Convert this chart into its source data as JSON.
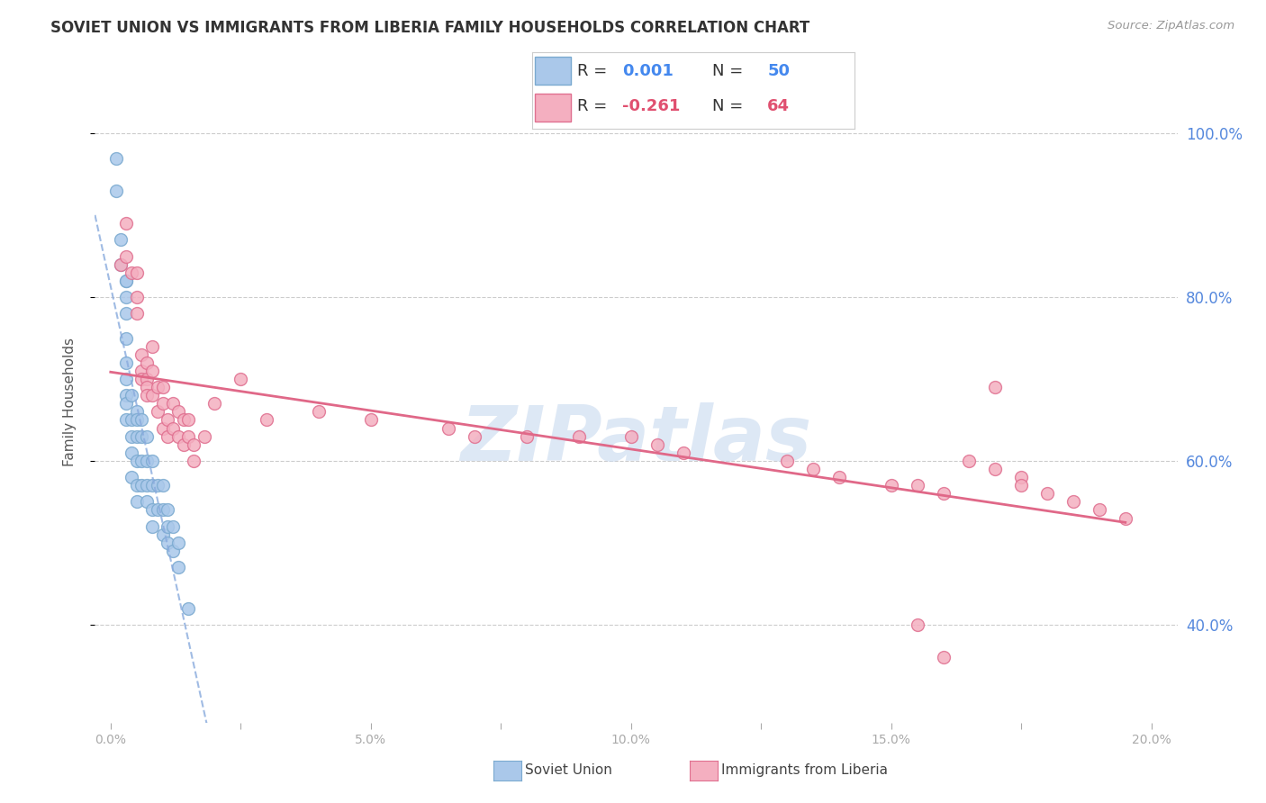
{
  "title": "SOVIET UNION VS IMMIGRANTS FROM LIBERIA FAMILY HOUSEHOLDS CORRELATION CHART",
  "source": "Source: ZipAtlas.com",
  "ylabel": "Family Households",
  "ytick_labels": [
    "40.0%",
    "60.0%",
    "80.0%",
    "100.0%"
  ],
  "ytick_vals": [
    0.4,
    0.6,
    0.8,
    1.0
  ],
  "xtick_vals": [
    0.0,
    0.025,
    0.05,
    0.075,
    0.1,
    0.125,
    0.15,
    0.175,
    0.2
  ],
  "xtick_labels": [
    "0.0%",
    "",
    "5.0%",
    "",
    "10.0%",
    "",
    "15.0%",
    "",
    "20.0%"
  ],
  "xlim": [
    -0.003,
    0.205
  ],
  "ylim": [
    0.28,
    1.065
  ],
  "soviet_color": "#aac8ea",
  "liberia_color": "#f4afc0",
  "soviet_edge_color": "#7baad0",
  "liberia_edge_color": "#e07090",
  "soviet_line_color": "#88aadd",
  "liberia_line_color": "#e06888",
  "grid_color": "#cccccc",
  "right_axis_color": "#5588dd",
  "watermark": "ZIPatlas",
  "soviet_x": [
    0.001,
    0.001,
    0.002,
    0.002,
    0.003,
    0.003,
    0.003,
    0.003,
    0.003,
    0.003,
    0.003,
    0.003,
    0.003,
    0.003,
    0.004,
    0.004,
    0.004,
    0.004,
    0.004,
    0.005,
    0.005,
    0.005,
    0.005,
    0.005,
    0.005,
    0.006,
    0.006,
    0.006,
    0.006,
    0.007,
    0.007,
    0.007,
    0.007,
    0.008,
    0.008,
    0.008,
    0.008,
    0.009,
    0.009,
    0.01,
    0.01,
    0.01,
    0.011,
    0.011,
    0.011,
    0.012,
    0.012,
    0.013,
    0.013,
    0.015
  ],
  "soviet_y": [
    0.97,
    0.93,
    0.87,
    0.84,
    0.82,
    0.82,
    0.8,
    0.78,
    0.75,
    0.72,
    0.7,
    0.68,
    0.67,
    0.65,
    0.68,
    0.65,
    0.63,
    0.61,
    0.58,
    0.66,
    0.65,
    0.63,
    0.6,
    0.57,
    0.55,
    0.65,
    0.63,
    0.6,
    0.57,
    0.63,
    0.6,
    0.57,
    0.55,
    0.6,
    0.57,
    0.54,
    0.52,
    0.57,
    0.54,
    0.57,
    0.54,
    0.51,
    0.54,
    0.52,
    0.5,
    0.52,
    0.49,
    0.5,
    0.47,
    0.42
  ],
  "liberia_x": [
    0.002,
    0.003,
    0.003,
    0.004,
    0.005,
    0.005,
    0.005,
    0.006,
    0.006,
    0.006,
    0.007,
    0.007,
    0.007,
    0.007,
    0.008,
    0.008,
    0.008,
    0.009,
    0.009,
    0.01,
    0.01,
    0.01,
    0.011,
    0.011,
    0.012,
    0.012,
    0.013,
    0.013,
    0.014,
    0.014,
    0.015,
    0.015,
    0.016,
    0.016,
    0.018,
    0.02,
    0.025,
    0.03,
    0.04,
    0.05,
    0.065,
    0.07,
    0.08,
    0.09,
    0.1,
    0.105,
    0.11,
    0.13,
    0.135,
    0.14,
    0.15,
    0.155,
    0.16,
    0.165,
    0.17,
    0.175,
    0.175,
    0.18,
    0.185,
    0.19,
    0.195,
    0.155,
    0.16,
    0.17
  ],
  "liberia_y": [
    0.84,
    0.89,
    0.85,
    0.83,
    0.83,
    0.8,
    0.78,
    0.73,
    0.71,
    0.7,
    0.72,
    0.7,
    0.69,
    0.68,
    0.74,
    0.71,
    0.68,
    0.69,
    0.66,
    0.69,
    0.67,
    0.64,
    0.65,
    0.63,
    0.67,
    0.64,
    0.66,
    0.63,
    0.65,
    0.62,
    0.65,
    0.63,
    0.62,
    0.6,
    0.63,
    0.67,
    0.7,
    0.65,
    0.66,
    0.65,
    0.64,
    0.63,
    0.63,
    0.63,
    0.63,
    0.62,
    0.61,
    0.6,
    0.59,
    0.58,
    0.57,
    0.57,
    0.56,
    0.6,
    0.59,
    0.58,
    0.57,
    0.56,
    0.55,
    0.54,
    0.53,
    0.4,
    0.36,
    0.69
  ]
}
